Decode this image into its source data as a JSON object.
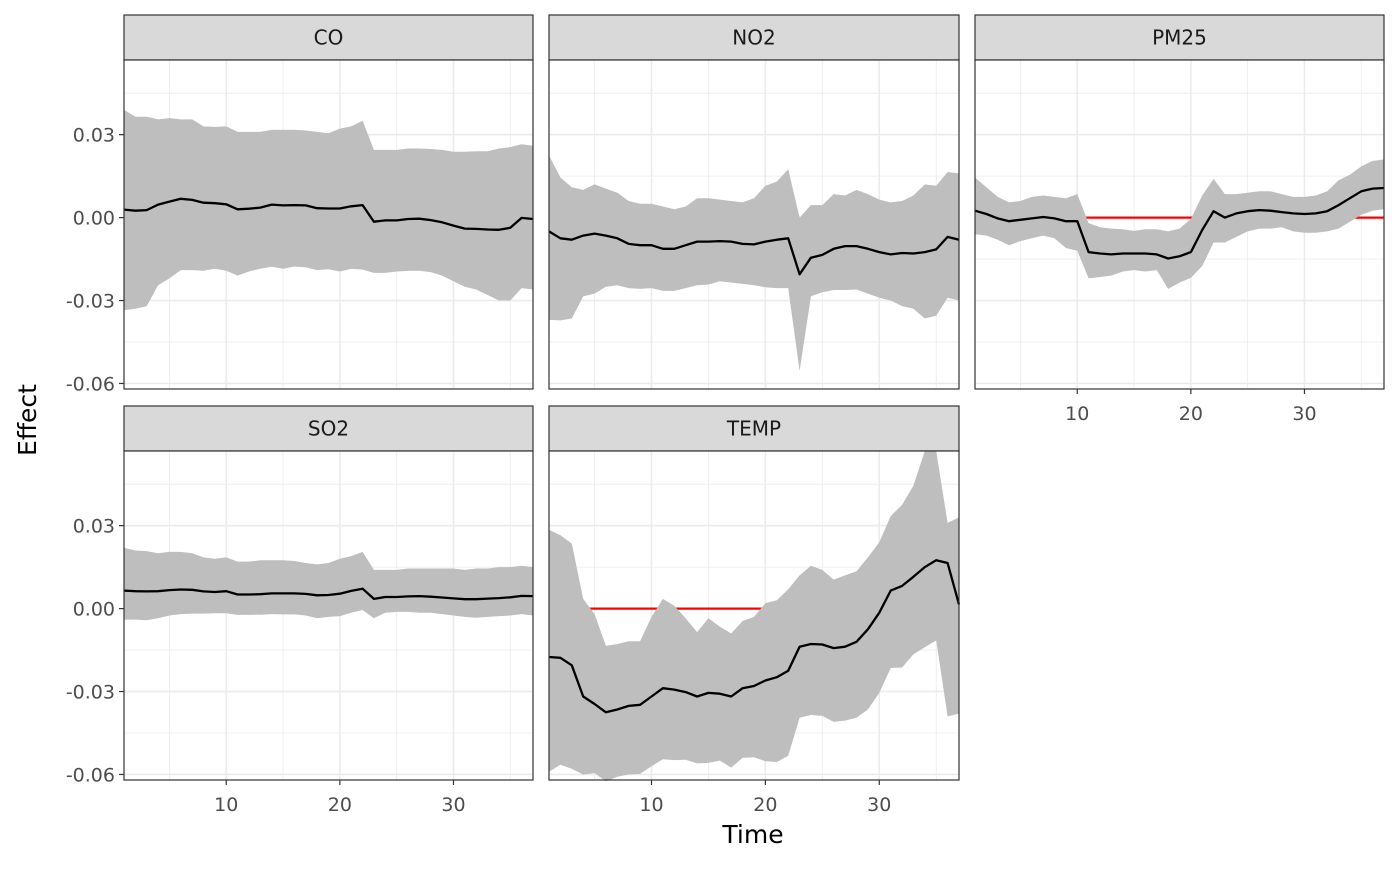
{
  "chart_data": {
    "type": "line",
    "xlabel": "Time",
    "ylabel": "Effect",
    "xlim": [
      1,
      37
    ],
    "ylim": [
      -0.062,
      0.057
    ],
    "x_ticks": [
      10,
      20,
      30
    ],
    "x_tick_labels": [
      "10",
      "20",
      "30"
    ],
    "y_ticks": [
      -0.06,
      -0.03,
      0.0,
      0.03
    ],
    "y_tick_labels": [
      "-0.06",
      "-0.03",
      "0.00",
      "0.03"
    ],
    "grid": true,
    "reference_line": {
      "y": 0,
      "color": "#ff0000"
    },
    "colors": {
      "ribbon": "#bebebe",
      "estimate": "#000000",
      "strip": "#d9d9d9",
      "grid": "#ebebeb"
    },
    "panels": [
      {
        "label": "CO",
        "x": [
          1,
          2,
          3,
          4,
          5,
          6,
          7,
          8,
          9,
          10,
          11,
          12,
          13,
          14,
          15,
          16,
          17,
          18,
          19,
          20,
          21,
          22,
          23,
          24,
          25,
          26,
          27,
          28,
          29,
          30,
          31,
          32,
          33,
          34,
          35,
          36,
          37
        ],
        "estimate": [
          0.0029,
          0.0025,
          0.0027,
          0.0047,
          0.0058,
          0.0068,
          0.0064,
          0.0054,
          0.0052,
          0.0048,
          0.003,
          0.0032,
          0.0036,
          0.0047,
          0.0044,
          0.0045,
          0.0044,
          0.0034,
          0.0033,
          0.0033,
          0.0041,
          0.0045,
          -0.0015,
          -0.001,
          -0.001,
          -0.0005,
          -0.0004,
          -0.0009,
          -0.0017,
          -0.0029,
          -0.004,
          -0.0041,
          -0.0043,
          -0.0044,
          -0.0037,
          -0.0001,
          -0.0005
        ],
        "lower": [
          -0.0335,
          -0.033,
          -0.032,
          -0.0245,
          -0.022,
          -0.019,
          -0.019,
          -0.0192,
          -0.0185,
          -0.0192,
          -0.021,
          -0.0195,
          -0.0185,
          -0.0178,
          -0.0185,
          -0.0177,
          -0.018,
          -0.019,
          -0.0187,
          -0.0195,
          -0.0185,
          -0.0188,
          -0.02,
          -0.02,
          -0.0195,
          -0.0193,
          -0.0192,
          -0.0197,
          -0.021,
          -0.023,
          -0.025,
          -0.026,
          -0.028,
          -0.03,
          -0.03,
          -0.0255,
          -0.026
        ],
        "upper": [
          0.039,
          0.0365,
          0.0365,
          0.0355,
          0.036,
          0.0355,
          0.0355,
          0.033,
          0.0328,
          0.033,
          0.031,
          0.031,
          0.031,
          0.0318,
          0.0317,
          0.0318,
          0.0315,
          0.031,
          0.0305,
          0.0322,
          0.033,
          0.035,
          0.0245,
          0.0245,
          0.0245,
          0.025,
          0.025,
          0.0248,
          0.0245,
          0.0238,
          0.0238,
          0.024,
          0.024,
          0.025,
          0.0255,
          0.0265,
          0.026
        ],
        "reference_segment": null
      },
      {
        "label": "NO2",
        "x": [
          1,
          2,
          3,
          4,
          5,
          6,
          7,
          8,
          9,
          10,
          11,
          12,
          13,
          14,
          15,
          16,
          17,
          18,
          19,
          20,
          21,
          22,
          23,
          24,
          25,
          26,
          27,
          28,
          29,
          30,
          31,
          32,
          33,
          34,
          35,
          36,
          37
        ],
        "estimate": [
          -0.005,
          -0.0075,
          -0.008,
          -0.0065,
          -0.0058,
          -0.0065,
          -0.0075,
          -0.0095,
          -0.01,
          -0.01,
          -0.0113,
          -0.0113,
          -0.01,
          -0.0087,
          -0.0087,
          -0.0085,
          -0.0087,
          -0.0095,
          -0.0097,
          -0.0087,
          -0.008,
          -0.0075,
          -0.0205,
          -0.0145,
          -0.0135,
          -0.0113,
          -0.0103,
          -0.0103,
          -0.0113,
          -0.0125,
          -0.0133,
          -0.0128,
          -0.013,
          -0.0125,
          -0.0115,
          -0.007,
          -0.008
        ],
        "lower": [
          -0.037,
          -0.0372,
          -0.0365,
          -0.0285,
          -0.0275,
          -0.025,
          -0.0245,
          -0.0255,
          -0.0258,
          -0.0255,
          -0.0265,
          -0.0265,
          -0.0255,
          -0.0245,
          -0.0242,
          -0.023,
          -0.0235,
          -0.024,
          -0.0245,
          -0.0252,
          -0.0255,
          -0.0255,
          -0.0555,
          -0.0285,
          -0.027,
          -0.0262,
          -0.0262,
          -0.026,
          -0.0275,
          -0.029,
          -0.03,
          -0.032,
          -0.033,
          -0.0365,
          -0.0355,
          -0.029,
          -0.03
        ],
        "upper": [
          0.0225,
          0.0145,
          0.011,
          0.01,
          0.012,
          0.0105,
          0.009,
          0.006,
          0.005,
          0.005,
          0.004,
          0.003,
          0.004,
          0.007,
          0.007,
          0.0065,
          0.006,
          0.0055,
          0.007,
          0.0115,
          0.013,
          0.0175,
          0.0,
          0.0045,
          0.0045,
          0.0085,
          0.008,
          0.01,
          0.0085,
          0.0065,
          0.0055,
          0.006,
          0.008,
          0.012,
          0.0115,
          0.0165,
          0.016
        ],
        "reference_segment": [
          22.2,
          23.0
        ]
      },
      {
        "label": "PM25",
        "x": [
          1,
          2,
          3,
          4,
          5,
          6,
          7,
          8,
          9,
          10,
          11,
          12,
          13,
          14,
          15,
          16,
          17,
          18,
          19,
          20,
          21,
          22,
          23,
          24,
          25,
          26,
          27,
          28,
          29,
          30,
          31,
          32,
          33,
          34,
          35,
          36,
          37
        ],
        "estimate": [
          0.0025,
          0.0013,
          -0.0003,
          -0.0013,
          -0.0008,
          -0.0003,
          0.0002,
          -0.0003,
          -0.0013,
          -0.0013,
          -0.0125,
          -0.013,
          -0.0133,
          -0.013,
          -0.013,
          -0.013,
          -0.0133,
          -0.0148,
          -0.014,
          -0.0125,
          -0.0045,
          0.0023,
          0.0,
          0.0015,
          0.0023,
          0.0027,
          0.0025,
          0.002,
          0.0015,
          0.0013,
          0.0015,
          0.0023,
          0.0045,
          0.007,
          0.0095,
          0.0105,
          0.0107
        ],
        "lower": [
          -0.006,
          -0.0065,
          -0.008,
          -0.01,
          -0.0085,
          -0.0075,
          -0.0065,
          -0.0075,
          -0.011,
          -0.012,
          -0.022,
          -0.0215,
          -0.021,
          -0.0195,
          -0.019,
          -0.0195,
          -0.019,
          -0.0258,
          -0.0235,
          -0.0218,
          -0.0175,
          -0.009,
          -0.009,
          -0.007,
          -0.005,
          -0.004,
          -0.004,
          -0.0035,
          -0.005,
          -0.0055,
          -0.0055,
          -0.005,
          -0.004,
          -0.0015,
          0.001,
          0.0025,
          0.003
        ],
        "upper": [
          0.0145,
          0.011,
          0.0075,
          0.0055,
          0.006,
          0.0075,
          0.008,
          0.0075,
          0.007,
          0.0085,
          -0.002,
          -0.0035,
          -0.004,
          -0.0042,
          -0.0048,
          -0.0042,
          -0.0042,
          -0.005,
          -0.004,
          -0.0005,
          0.008,
          0.014,
          0.0085,
          0.0085,
          0.009,
          0.0095,
          0.0095,
          0.0085,
          0.0075,
          0.0075,
          0.008,
          0.0095,
          0.0135,
          0.0155,
          0.0185,
          0.0205,
          0.021
        ],
        "reference_segment": [
          10.3,
          37
        ]
      },
      {
        "label": "SO2",
        "x": [
          1,
          2,
          3,
          4,
          5,
          6,
          7,
          8,
          9,
          10,
          11,
          12,
          13,
          14,
          15,
          16,
          17,
          18,
          19,
          20,
          21,
          22,
          23,
          24,
          25,
          26,
          27,
          28,
          29,
          30,
          31,
          32,
          33,
          34,
          35,
          36,
          37
        ],
        "estimate": [
          0.0065,
          0.0063,
          0.0062,
          0.0063,
          0.0067,
          0.0069,
          0.0068,
          0.0062,
          0.006,
          0.0063,
          0.0051,
          0.0051,
          0.0052,
          0.0055,
          0.0055,
          0.0055,
          0.0053,
          0.0048,
          0.0049,
          0.0054,
          0.0064,
          0.0072,
          0.0035,
          0.0042,
          0.0042,
          0.0044,
          0.0045,
          0.0043,
          0.004,
          0.0037,
          0.0034,
          0.0034,
          0.0036,
          0.0038,
          0.0041,
          0.0046,
          0.0045
        ],
        "lower": [
          -0.004,
          -0.004,
          -0.0042,
          -0.0035,
          -0.0025,
          -0.002,
          -0.0018,
          -0.0018,
          -0.0017,
          -0.0017,
          -0.0023,
          -0.0023,
          -0.0022,
          -0.002,
          -0.0021,
          -0.0021,
          -0.0025,
          -0.0035,
          -0.003,
          -0.0027,
          -0.0015,
          -0.0005,
          -0.0035,
          -0.0015,
          -0.0012,
          -0.0012,
          -0.0015,
          -0.0015,
          -0.002,
          -0.0025,
          -0.003,
          -0.0033,
          -0.003,
          -0.0027,
          -0.0025,
          -0.002,
          -0.0025
        ],
        "upper": [
          0.022,
          0.021,
          0.0208,
          0.02,
          0.0205,
          0.0205,
          0.02,
          0.0185,
          0.018,
          0.0185,
          0.017,
          0.017,
          0.0175,
          0.0175,
          0.0175,
          0.0172,
          0.0165,
          0.016,
          0.0165,
          0.018,
          0.019,
          0.0205,
          0.014,
          0.014,
          0.014,
          0.0145,
          0.0145,
          0.0145,
          0.0145,
          0.0145,
          0.014,
          0.0145,
          0.0145,
          0.015,
          0.015,
          0.0155,
          0.015
        ],
        "reference_segment": null
      },
      {
        "label": "TEMP",
        "x": [
          1,
          2,
          3,
          4,
          5,
          6,
          7,
          8,
          9,
          10,
          11,
          12,
          13,
          14,
          15,
          16,
          17,
          18,
          19,
          20,
          21,
          22,
          23,
          24,
          25,
          26,
          27,
          28,
          29,
          30,
          31,
          32,
          33,
          34,
          35,
          36,
          37
        ],
        "estimate": [
          -0.0175,
          -0.0178,
          -0.0205,
          -0.0318,
          -0.0345,
          -0.0375,
          -0.0365,
          -0.0352,
          -0.0348,
          -0.0318,
          -0.0288,
          -0.0293,
          -0.0302,
          -0.0318,
          -0.0305,
          -0.0308,
          -0.0318,
          -0.0288,
          -0.028,
          -0.026,
          -0.0248,
          -0.0225,
          -0.0138,
          -0.0128,
          -0.013,
          -0.0143,
          -0.0138,
          -0.012,
          -0.0075,
          -0.0015,
          0.0065,
          0.0082,
          0.0115,
          0.015,
          0.0175,
          0.0165,
          0.0015
        ],
        "lower": [
          -0.059,
          -0.0565,
          -0.058,
          -0.06,
          -0.0595,
          -0.0625,
          -0.0608,
          -0.06,
          -0.0598,
          -0.057,
          -0.0545,
          -0.0548,
          -0.0547,
          -0.056,
          -0.0558,
          -0.055,
          -0.0575,
          -0.054,
          -0.0538,
          -0.0552,
          -0.0555,
          -0.0532,
          -0.0395,
          -0.0385,
          -0.0388,
          -0.041,
          -0.0405,
          -0.0395,
          -0.0365,
          -0.0305,
          -0.0215,
          -0.0213,
          -0.0165,
          -0.014,
          -0.0115,
          -0.039,
          -0.038
        ],
        "upper": [
          0.0285,
          0.0265,
          0.0235,
          0.0035,
          -0.002,
          -0.0135,
          -0.0128,
          -0.0118,
          -0.0118,
          -0.003,
          0.0035,
          0.001,
          -0.0035,
          -0.0085,
          -0.0035,
          -0.0065,
          -0.009,
          -0.0045,
          -0.003,
          0.002,
          0.003,
          0.007,
          0.012,
          0.0155,
          0.014,
          0.0105,
          0.012,
          0.0135,
          0.0185,
          0.024,
          0.0335,
          0.0375,
          0.0445,
          0.057,
          0.057,
          0.031,
          0.033
        ],
        "reference_segment": [
          4.0,
          20.5
        ]
      }
    ]
  }
}
